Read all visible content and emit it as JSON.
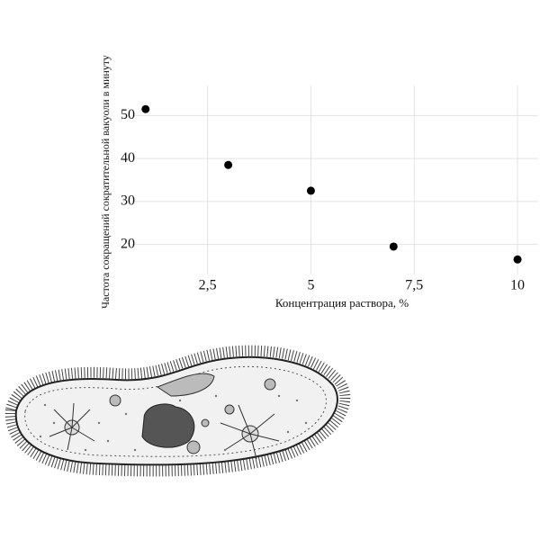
{
  "chart_data": {
    "type": "scatter",
    "x_label": "Концентрация раствора, %",
    "y_label": "Частота сокращений сократительной вакуоли в минуту",
    "x": [
      1,
      3,
      5,
      7,
      10
    ],
    "values": [
      51.5,
      38.5,
      32.5,
      19.5,
      16.5
    ],
    "color": "#000000",
    "xlim": [
      0.7,
      10.5
    ],
    "ylim": [
      13,
      57
    ],
    "xticks": [
      {
        "value": 2.5,
        "label": "2,5"
      },
      5,
      {
        "value": 7.5,
        "label": "7,5"
      },
      10
    ],
    "yticks": [
      20,
      30,
      40,
      50
    ],
    "grid": true
  }
}
